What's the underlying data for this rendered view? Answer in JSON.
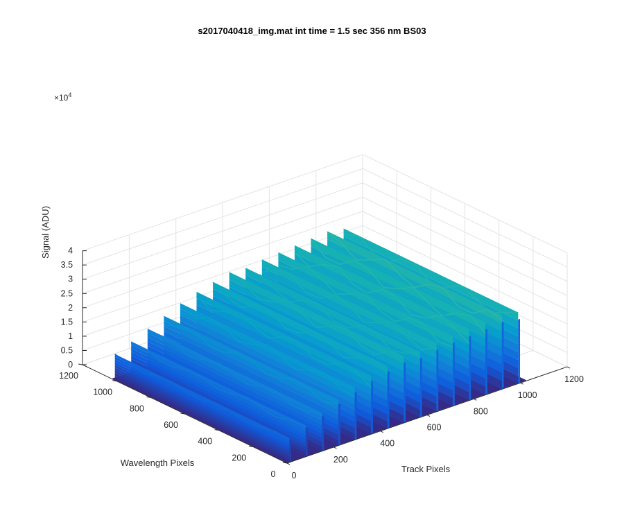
{
  "chart_data": {
    "type": "surface",
    "title": "s2017040418_img.mat int time = 1.5 sec  356 nm BS03",
    "xlabel": "Track Pixels",
    "ylabel": "Wavelength Pixels",
    "zlabel": "Signal (ADU)",
    "z_exponent_label": "×10",
    "z_exponent_power": "4",
    "xlim": [
      0,
      1200
    ],
    "ylim": [
      0,
      1200
    ],
    "zlim": [
      0,
      40000
    ],
    "x_ticks": [
      "0",
      "200",
      "400",
      "600",
      "800",
      "1000",
      "1200"
    ],
    "y_ticks": [
      "0",
      "200",
      "400",
      "600",
      "800",
      "1000",
      "1200"
    ],
    "z_ticks": [
      "0",
      "0.5",
      "1",
      "1.5",
      "2",
      "2.5",
      "3",
      "3.5",
      "4"
    ],
    "grid": true,
    "colormap": "parula",
    "surface_extent": {
      "x": [
        0,
        1024
      ],
      "y": [
        0,
        1024
      ]
    },
    "tracks": {
      "x_positions": [
        10,
        80,
        150,
        220,
        290,
        360,
        430,
        500,
        570,
        640,
        710,
        780,
        850,
        920,
        990
      ],
      "y_range": [
        0,
        1024
      ],
      "peak_signal": [
        8500,
        11000,
        13500,
        16000,
        18500,
        20500,
        22000,
        23500,
        23000,
        24000,
        24500,
        25000,
        25500,
        26000,
        25000
      ]
    },
    "background_signal": 200
  },
  "colors": {
    "axis": "#262626",
    "grid": "#e3e3e3",
    "floor": "#352a87"
  }
}
